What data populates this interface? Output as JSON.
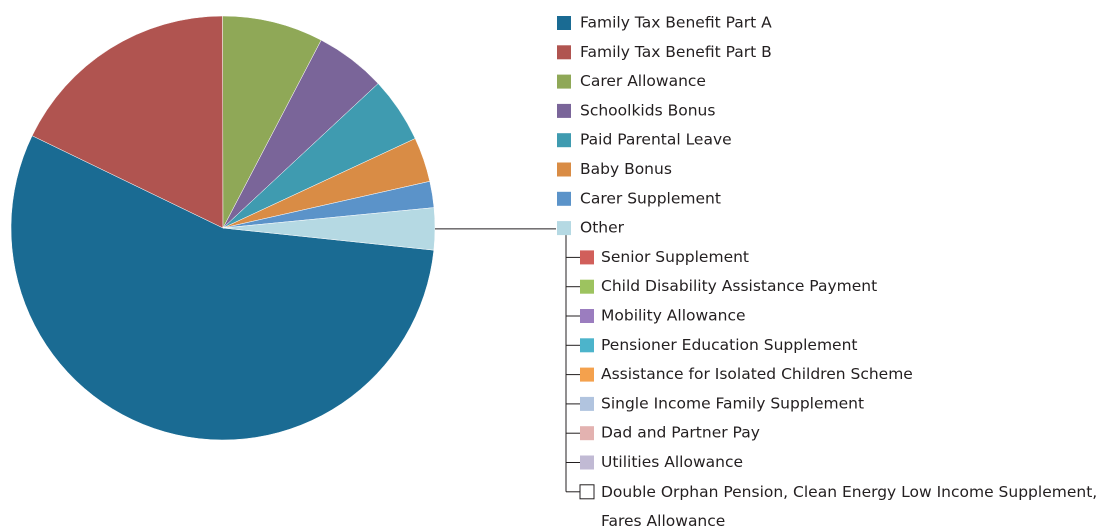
{
  "chart_data": {
    "type": "pie",
    "categories": [
      "Family Tax Benefit Part A",
      "Family Tax Benefit Part B",
      "Carer Allowance",
      "Schoolkids Bonus",
      "Paid Parental Leave",
      "Baby Bonus",
      "Carer Supplement",
      "Other"
    ],
    "values": [
      55.5,
      17.8,
      7.7,
      5.4,
      5.0,
      3.4,
      2.0,
      3.2
    ],
    "colors": [
      "#1a6b93",
      "#b05450",
      "#8fa857",
      "#7a6599",
      "#3f9bb0",
      "#d98c45",
      "#5b93c9",
      "#b5d9e3"
    ],
    "other_breakdown": [
      {
        "name": "Senior Supplement",
        "color": "#d15f5a"
      },
      {
        "name": "Child Disability Assistance Payment",
        "color": "#9dc35f"
      },
      {
        "name": "Mobility Allowance",
        "color": "#9b7dbf"
      },
      {
        "name": "Pensioner Education Supplement",
        "color": "#4cb4cb"
      },
      {
        "name": "Assistance for Isolated Children Scheme",
        "color": "#f4a14d"
      },
      {
        "name": "Single Income Family Supplement",
        "color": "#b1c4df"
      },
      {
        "name": "Dad and Partner Pay",
        "color": "#e3b2b0"
      },
      {
        "name": "Utilities Allowance",
        "color": "#c1bad4"
      },
      {
        "name": "Double Orphan Pension, Clean Energy Low Income Supplement, Fares Allowance",
        "color": "#ffffff"
      }
    ]
  }
}
